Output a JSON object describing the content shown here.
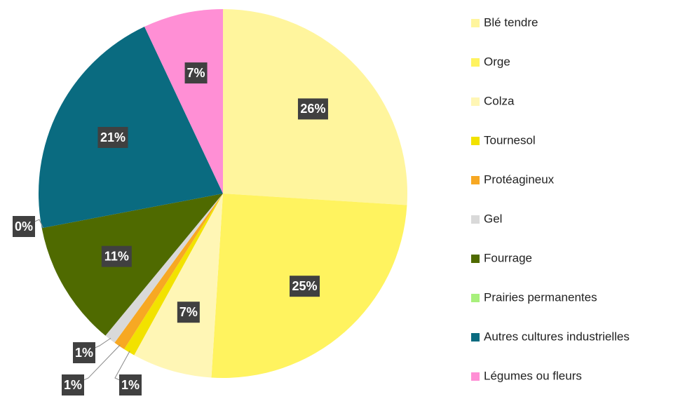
{
  "chart_data": {
    "type": "pie",
    "categories": [
      "Blé tendre",
      "Orge",
      "Colza",
      "Tournesol",
      "Protéagineux",
      "Gel",
      "Fourrage",
      "Prairies permanentes",
      "Autres cultures industrielles",
      "Légumes ou fleurs"
    ],
    "values": [
      26,
      25,
      7,
      1,
      1,
      1,
      11,
      0,
      21,
      7
    ],
    "value_labels": [
      "26%",
      "25%",
      "7%",
      "1%",
      "1%",
      "1%",
      "11%",
      "0%",
      "21%",
      "7%"
    ],
    "colors": [
      "#FFF59D",
      "#FFF35F",
      "#FFF6B5",
      "#F2E200",
      "#F7A823",
      "#D9D9D9",
      "#4F6A00",
      "#A8F07C",
      "#0A6B80",
      "#FF8FD5"
    ],
    "legend": "right"
  }
}
